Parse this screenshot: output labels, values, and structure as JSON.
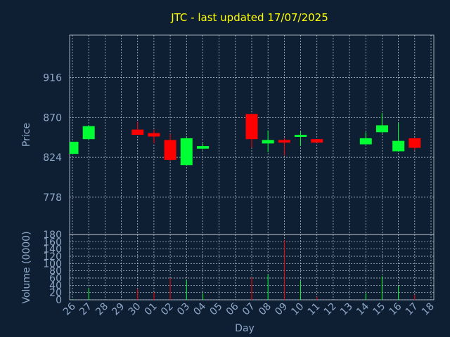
{
  "chart_data": {
    "type": "candlestick",
    "title": "JTC - last updated 17/07/2025",
    "xlabel": "Day",
    "price_panel": {
      "ylabel": "Price",
      "ylim": [
        735,
        965
      ],
      "yticks": [
        778,
        824,
        870,
        916
      ],
      "grid": true
    },
    "volume_panel": {
      "ylabel": "Volume (0000)",
      "ylim": [
        0,
        180
      ],
      "yticks": [
        0,
        20,
        40,
        60,
        80,
        100,
        120,
        140,
        160,
        180
      ],
      "grid": true
    },
    "x_tick_labels": [
      "26",
      "27",
      "28",
      "29",
      "30",
      "01",
      "02",
      "03",
      "04",
      "05",
      "06",
      "07",
      "08",
      "09",
      "10",
      "11",
      "12",
      "13",
      "14",
      "15",
      "16",
      "17",
      "18"
    ],
    "colors": {
      "up": "#00ff33",
      "down": "#ff0000",
      "title": "#ffff00",
      "axis_text": "#8fa8c8",
      "background": "#0f1f33"
    },
    "candles": [
      {
        "x": 0,
        "open": 828,
        "high": 842,
        "low": 828,
        "close": 842
      },
      {
        "x": 1,
        "open": 845,
        "high": 861,
        "low": 844,
        "close": 860
      },
      {
        "x": 4,
        "open": 856,
        "high": 865,
        "low": 850,
        "close": 850
      },
      {
        "x": 5,
        "open": 852,
        "high": 856,
        "low": 840,
        "close": 848
      },
      {
        "x": 6,
        "open": 844,
        "high": 851,
        "low": 820,
        "close": 821
      },
      {
        "x": 7,
        "open": 815,
        "high": 847,
        "low": 815,
        "close": 846
      },
      {
        "x": 8,
        "open": 834,
        "high": 840,
        "low": 833,
        "close": 837
      },
      {
        "x": 11,
        "open": 874,
        "high": 874,
        "low": 835,
        "close": 845
      },
      {
        "x": 12,
        "open": 840,
        "high": 855,
        "low": 830,
        "close": 844
      },
      {
        "x": 13,
        "open": 844,
        "high": 846,
        "low": 826,
        "close": 841
      },
      {
        "x": 14,
        "open": 848,
        "high": 854,
        "low": 837,
        "close": 850
      },
      {
        "x": 15,
        "open": 845,
        "high": 845,
        "low": 841,
        "close": 841
      },
      {
        "x": 18,
        "open": 839,
        "high": 853,
        "low": 839,
        "close": 846
      },
      {
        "x": 19,
        "open": 853,
        "high": 875,
        "low": 852,
        "close": 861
      },
      {
        "x": 20,
        "open": 831,
        "high": 864,
        "low": 831,
        "close": 843
      },
      {
        "x": 21,
        "open": 846,
        "high": 846,
        "low": 832,
        "close": 835
      }
    ],
    "volume": [
      {
        "x": 0,
        "value": 2
      },
      {
        "x": 1,
        "value": 32
      },
      {
        "x": 4,
        "value": 30
      },
      {
        "x": 5,
        "value": 20
      },
      {
        "x": 6,
        "value": 60
      },
      {
        "x": 7,
        "value": 55
      },
      {
        "x": 8,
        "value": 18
      },
      {
        "x": 11,
        "value": 62
      },
      {
        "x": 12,
        "value": 70
      },
      {
        "x": 13,
        "value": 165
      },
      {
        "x": 14,
        "value": 52
      },
      {
        "x": 15,
        "value": 8
      },
      {
        "x": 18,
        "value": 18
      },
      {
        "x": 19,
        "value": 65
      },
      {
        "x": 20,
        "value": 38
      },
      {
        "x": 21,
        "value": 14
      }
    ]
  }
}
